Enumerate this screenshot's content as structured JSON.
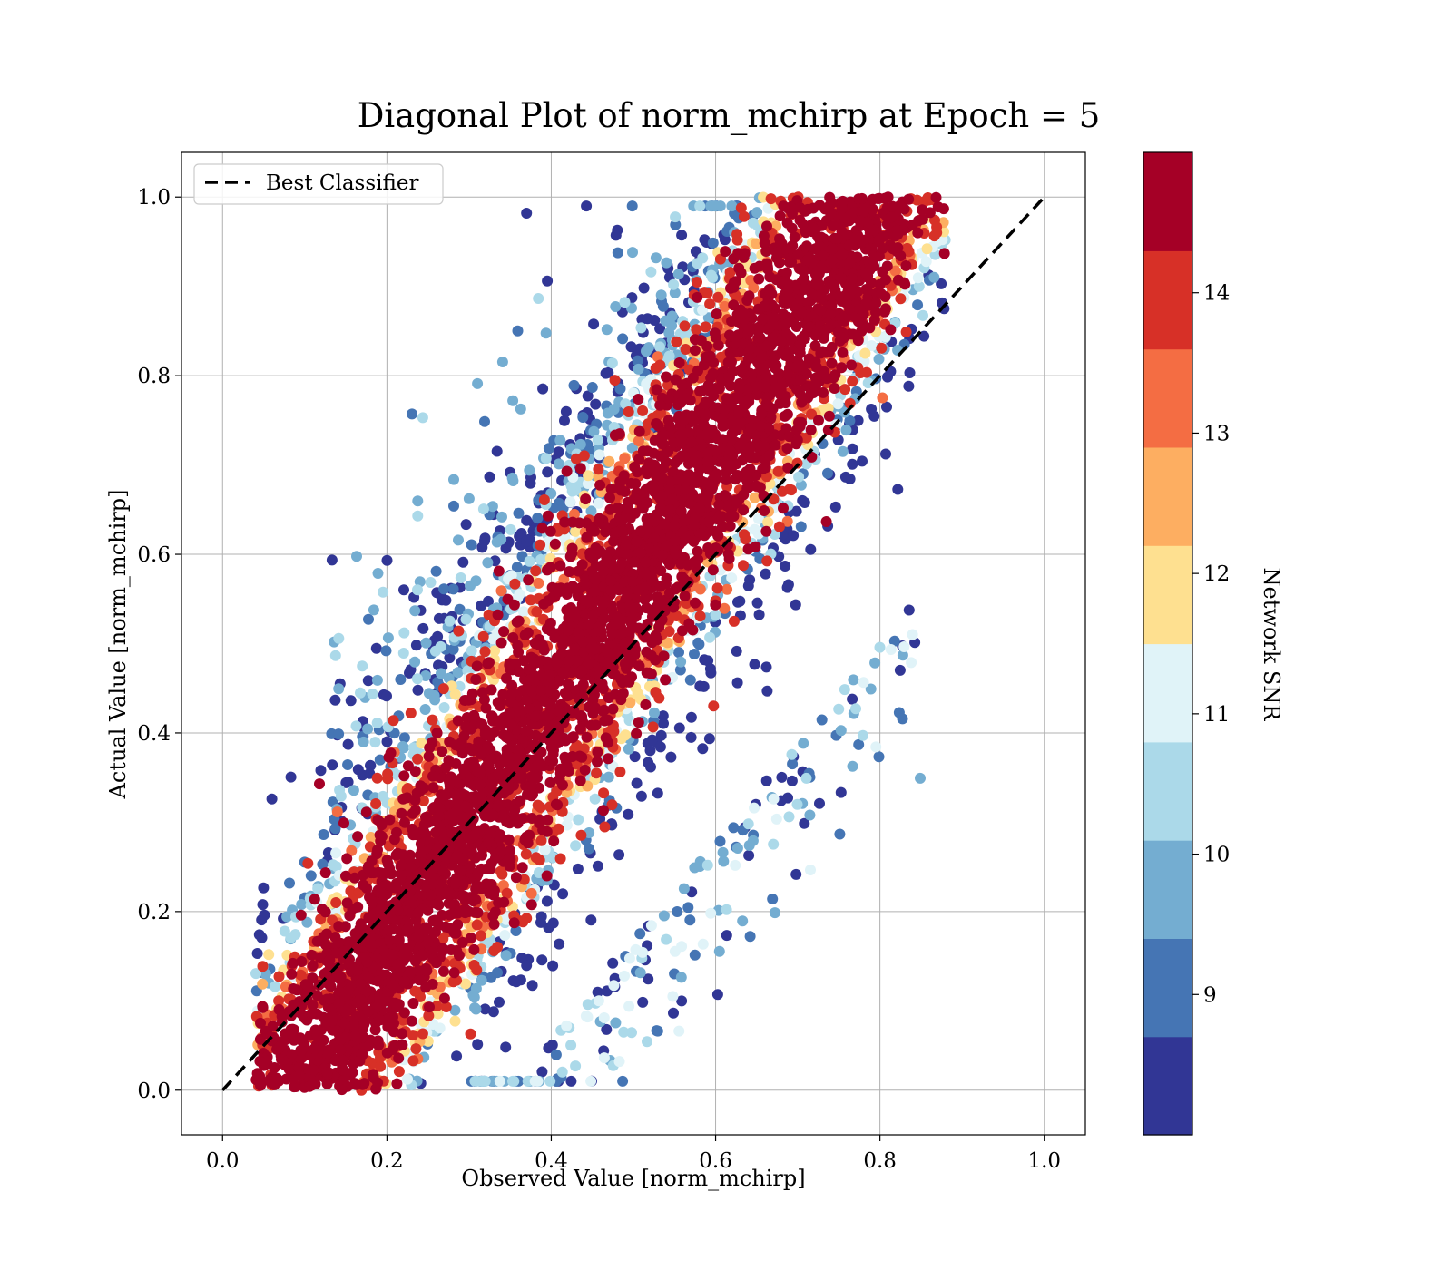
{
  "chart_data": {
    "type": "scatter",
    "title": "Diagonal Plot of norm_mchirp at Epoch = 5",
    "xlabel": "Observed Value [norm_mchirp]",
    "ylabel": "Actual Value [norm_mchirp]",
    "xlim": [
      -0.05,
      1.05
    ],
    "ylim": [
      -0.05,
      1.05
    ],
    "xticks": [
      "0.0",
      "0.2",
      "0.4",
      "0.6",
      "0.8",
      "1.0"
    ],
    "yticks": [
      "0.0",
      "0.2",
      "0.4",
      "0.6",
      "0.8",
      "1.0"
    ],
    "grid": true,
    "legend": {
      "placement": "upper-left",
      "entries": [
        "Best Classifier"
      ]
    },
    "reference_line": {
      "name": "Best Classifier",
      "x": [
        0,
        1
      ],
      "y": [
        0,
        1
      ],
      "style": "dashed",
      "color": "#000000"
    },
    "colorbar": {
      "label": "Network SNR",
      "range": [
        8,
        15
      ],
      "ticks": [
        "9",
        "10",
        "11",
        "12",
        "13",
        "14"
      ],
      "colors": [
        "#313695",
        "#4575b4",
        "#74add1",
        "#abd9e9",
        "#e0f3f8",
        "#fee090",
        "#fdae61",
        "#f46d43",
        "#d73027",
        "#a50026"
      ]
    },
    "scatter_summary": {
      "description_of_points": "dense band around y = x, low-SNR points scattered above the diagonal at low x and below at high x",
      "x_range": [
        0.05,
        0.87
      ],
      "y_range": [
        0.0,
        1.0
      ]
    }
  }
}
